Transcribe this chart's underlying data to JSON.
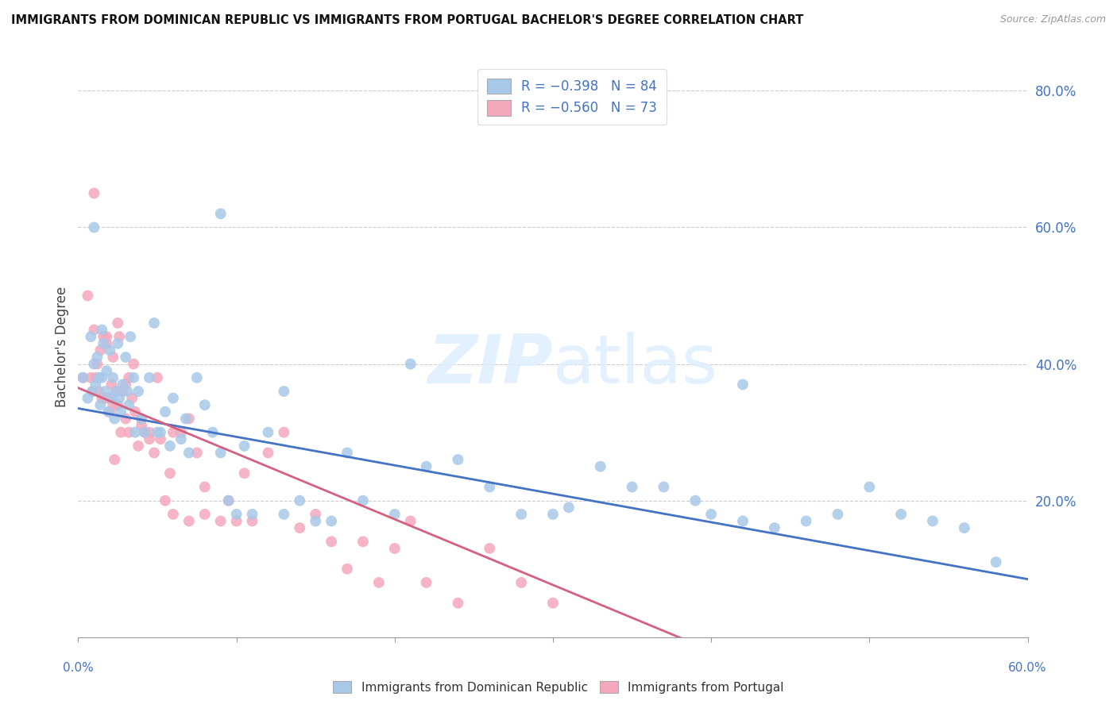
{
  "title": "IMMIGRANTS FROM DOMINICAN REPUBLIC VS IMMIGRANTS FROM PORTUGAL BACHELOR'S DEGREE CORRELATION CHART",
  "source": "Source: ZipAtlas.com",
  "ylabel": "Bachelor's Degree",
  "ytick_values": [
    0.8,
    0.6,
    0.4,
    0.2
  ],
  "xlim": [
    0.0,
    0.6
  ],
  "ylim": [
    0.0,
    0.85
  ],
  "blue_color": "#a8c8e8",
  "pink_color": "#f4a8bc",
  "blue_line_color": "#4472c4",
  "pink_line_color": "#d46080",
  "blue_trendline_x": [
    0.0,
    0.6
  ],
  "blue_trendline_y": [
    0.335,
    0.085
  ],
  "pink_trendline_x": [
    0.0,
    0.39
  ],
  "pink_trendline_y": [
    0.365,
    -0.01
  ],
  "blue_scatter_x": [
    0.003,
    0.006,
    0.008,
    0.009,
    0.01,
    0.011,
    0.012,
    0.013,
    0.014,
    0.015,
    0.015,
    0.016,
    0.017,
    0.018,
    0.019,
    0.02,
    0.021,
    0.022,
    0.023,
    0.024,
    0.025,
    0.026,
    0.027,
    0.028,
    0.03,
    0.031,
    0.032,
    0.033,
    0.035,
    0.036,
    0.038,
    0.04,
    0.042,
    0.045,
    0.048,
    0.05,
    0.052,
    0.055,
    0.058,
    0.06,
    0.065,
    0.068,
    0.07,
    0.075,
    0.08,
    0.085,
    0.09,
    0.095,
    0.1,
    0.105,
    0.11,
    0.12,
    0.13,
    0.14,
    0.15,
    0.16,
    0.17,
    0.18,
    0.2,
    0.21,
    0.22,
    0.24,
    0.26,
    0.28,
    0.3,
    0.31,
    0.33,
    0.35,
    0.37,
    0.39,
    0.4,
    0.42,
    0.44,
    0.46,
    0.48,
    0.5,
    0.52,
    0.54,
    0.56,
    0.58,
    0.09,
    0.13,
    0.42,
    0.01
  ],
  "blue_scatter_y": [
    0.38,
    0.35,
    0.44,
    0.36,
    0.4,
    0.37,
    0.41,
    0.38,
    0.34,
    0.45,
    0.38,
    0.43,
    0.36,
    0.39,
    0.33,
    0.42,
    0.35,
    0.38,
    0.32,
    0.36,
    0.43,
    0.35,
    0.33,
    0.37,
    0.41,
    0.36,
    0.34,
    0.44,
    0.38,
    0.3,
    0.36,
    0.32,
    0.3,
    0.38,
    0.46,
    0.3,
    0.3,
    0.33,
    0.28,
    0.35,
    0.29,
    0.32,
    0.27,
    0.38,
    0.34,
    0.3,
    0.27,
    0.2,
    0.18,
    0.28,
    0.18,
    0.3,
    0.18,
    0.2,
    0.17,
    0.17,
    0.27,
    0.2,
    0.18,
    0.4,
    0.25,
    0.26,
    0.22,
    0.18,
    0.18,
    0.19,
    0.25,
    0.22,
    0.22,
    0.2,
    0.18,
    0.17,
    0.16,
    0.17,
    0.18,
    0.22,
    0.18,
    0.17,
    0.16,
    0.11,
    0.62,
    0.36,
    0.37,
    0.6
  ],
  "pink_scatter_x": [
    0.003,
    0.006,
    0.008,
    0.009,
    0.01,
    0.011,
    0.012,
    0.013,
    0.014,
    0.015,
    0.016,
    0.017,
    0.018,
    0.019,
    0.02,
    0.021,
    0.022,
    0.023,
    0.024,
    0.025,
    0.026,
    0.027,
    0.028,
    0.03,
    0.032,
    0.034,
    0.036,
    0.038,
    0.04,
    0.042,
    0.045,
    0.048,
    0.05,
    0.052,
    0.055,
    0.058,
    0.06,
    0.065,
    0.07,
    0.075,
    0.08,
    0.09,
    0.1,
    0.11,
    0.12,
    0.13,
    0.14,
    0.15,
    0.16,
    0.17,
    0.18,
    0.19,
    0.2,
    0.21,
    0.22,
    0.24,
    0.26,
    0.28,
    0.3,
    0.01,
    0.025,
    0.03,
    0.035,
    0.04,
    0.045,
    0.06,
    0.07,
    0.08,
    0.095,
    0.105,
    0.018,
    0.022,
    0.032
  ],
  "pink_scatter_y": [
    0.38,
    0.5,
    0.38,
    0.36,
    0.45,
    0.38,
    0.4,
    0.36,
    0.42,
    0.35,
    0.44,
    0.35,
    0.43,
    0.35,
    0.33,
    0.37,
    0.41,
    0.26,
    0.36,
    0.34,
    0.44,
    0.3,
    0.36,
    0.32,
    0.3,
    0.35,
    0.33,
    0.28,
    0.31,
    0.3,
    0.29,
    0.27,
    0.38,
    0.29,
    0.2,
    0.24,
    0.18,
    0.3,
    0.17,
    0.27,
    0.18,
    0.17,
    0.17,
    0.17,
    0.27,
    0.3,
    0.16,
    0.18,
    0.14,
    0.1,
    0.14,
    0.08,
    0.13,
    0.17,
    0.08,
    0.05,
    0.13,
    0.08,
    0.05,
    0.65,
    0.46,
    0.37,
    0.4,
    0.32,
    0.3,
    0.3,
    0.32,
    0.22,
    0.2,
    0.24,
    0.44,
    0.34,
    0.38
  ]
}
